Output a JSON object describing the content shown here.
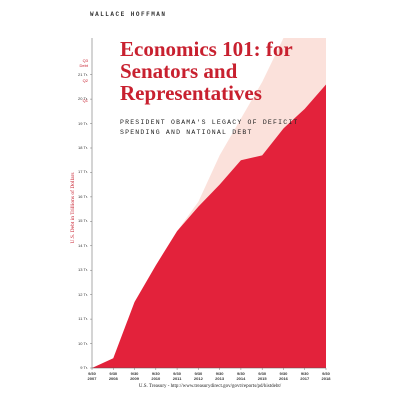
{
  "chart_data": {
    "type": "area",
    "author": "WALLACE HOFFMAN",
    "title": "Economics 101: for Senators and Representatives",
    "subtitle": "PRESIDENT OBAMA'S LEGACY OF DEFICIT SPENDING AND NATIONAL DEBT",
    "y_label": "U.S. Debt in Trillions of Dollars",
    "source": "U.S. Treasury - http://www.treasurydirect.gov/govt/reports/pd/histdebt/",
    "annotations": [
      "Q3 Debt",
      "Q2",
      "Q1"
    ],
    "categories": [
      "9/30 2007",
      "9/30 2008",
      "9/30 2009",
      "9/30 2010",
      "9/30 2011",
      "9/30 2012",
      "9/30 2013",
      "9/30 2014",
      "9/30 2015",
      "9/30 2016",
      "9/30 2017",
      "9/30 2018"
    ],
    "series": [
      {
        "color": "#fbe1db",
        "values": [
          9,
          9.4,
          11.7,
          13.2,
          14.6,
          15.8,
          17.7,
          19.2,
          20.7,
          22.5,
          22.5,
          22.5
        ]
      },
      {
        "color": "#e3223b",
        "values": [
          9,
          9.4,
          11.7,
          13.2,
          14.6,
          15.6,
          16.5,
          17.5,
          17.7,
          18.8,
          19.6,
          20.6
        ]
      }
    ],
    "ylim": [
      9,
      22.5
    ],
    "yticks": [
      {
        "value": 9,
        "label": "9 Tr."
      },
      {
        "value": 10,
        "label": "10 Tr."
      },
      {
        "value": 11,
        "label": "11 Tr."
      },
      {
        "value": 12,
        "label": "12 Tr."
      },
      {
        "value": 13,
        "label": "13 Tr."
      },
      {
        "value": 14,
        "label": "14 Tr."
      },
      {
        "value": 15,
        "label": "15 Tr."
      },
      {
        "value": 16,
        "label": "16 Tr."
      },
      {
        "value": 17,
        "label": "17 Tr."
      },
      {
        "value": 18,
        "label": "18 Tr."
      },
      {
        "value": 19,
        "label": "19 Tr."
      },
      {
        "value": 20,
        "label": "20 Tr."
      },
      {
        "value": 21,
        "label": "21 Tr."
      }
    ]
  }
}
